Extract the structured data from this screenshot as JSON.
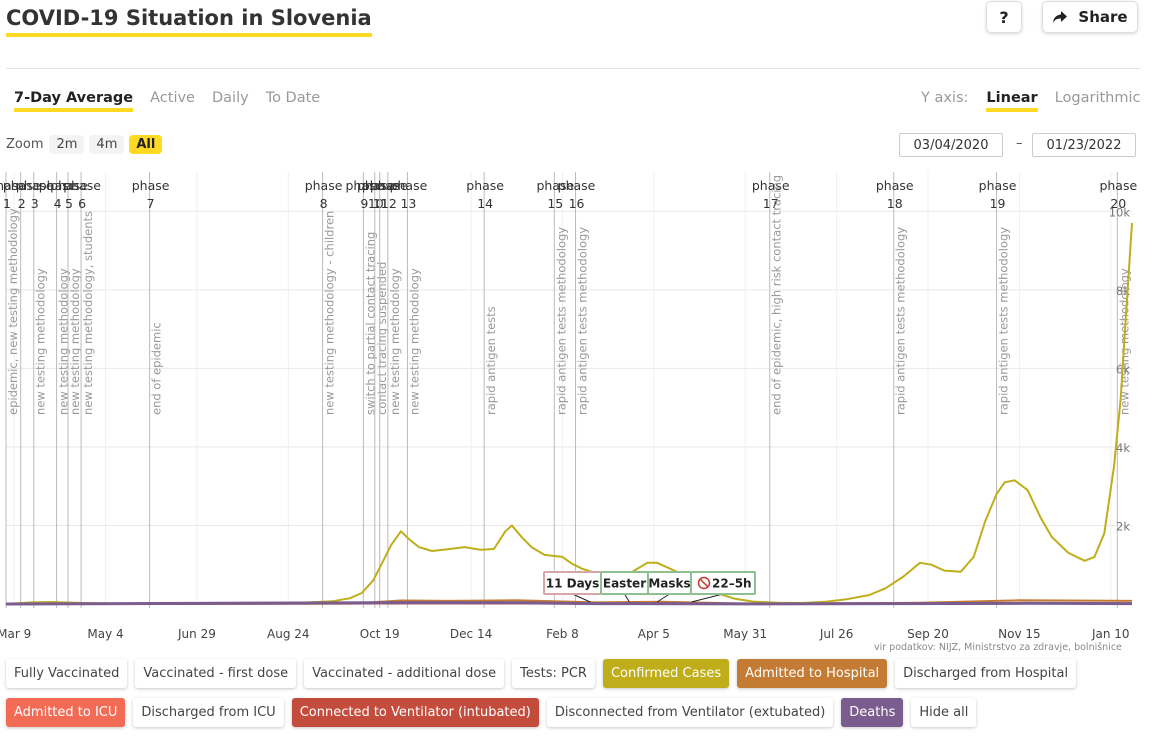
{
  "page": {
    "title": "COVID-19 Situation in Slovenia",
    "help_label": "?",
    "share_label": "Share",
    "share_icon": "share-arrow-icon",
    "tabs": [
      "7-Day Average",
      "Active",
      "Daily",
      "To Date"
    ],
    "active_tab": "7-Day Average",
    "yaxis_label": "Y axis:",
    "yaxis_options": [
      "Linear",
      "Logarithmic"
    ],
    "yaxis_active": "Linear",
    "zoom_label": "Zoom",
    "zoom_options": [
      "2m",
      "4m",
      "All"
    ],
    "zoom_active": "All",
    "date_from": "03/04/2020",
    "date_to": "01/23/2022",
    "date_sep": "–",
    "source": "vir podatkov: NIJZ, Ministrstvo za zdravje, bolnišnice"
  },
  "legend": [
    {
      "label": "Fully Vaccinated",
      "on": false,
      "color": ""
    },
    {
      "label": "Vaccinated - first dose",
      "on": false,
      "color": ""
    },
    {
      "label": "Vaccinated - additional dose",
      "on": false,
      "color": ""
    },
    {
      "label": "Tests: PCR",
      "on": false,
      "color": ""
    },
    {
      "label": "Confirmed Cases",
      "on": true,
      "color": "#bfae1a"
    },
    {
      "label": "Admitted to Hospital",
      "on": true,
      "color": "#c47b33"
    },
    {
      "label": "Discharged from Hospital",
      "on": false,
      "color": ""
    },
    {
      "label": "Admitted to ICU",
      "on": true,
      "color": "#f26b55"
    },
    {
      "label": "Discharged from ICU",
      "on": false,
      "color": ""
    },
    {
      "label": "Connected to Ventilator (intubated)",
      "on": true,
      "color": "#c34c3c"
    },
    {
      "label": "Disconnected from Ventilator (extubated)",
      "on": false,
      "color": ""
    },
    {
      "label": "Deaths",
      "on": true,
      "color": "#7a5c8e"
    },
    {
      "label": "Hide all",
      "on": false,
      "color": ""
    }
  ],
  "chart_data": {
    "type": "line",
    "x_start": "2020-03-04",
    "x_end": "2022-01-23",
    "ylim": [
      0,
      11000
    ],
    "y_ticks": [
      2000,
      4000,
      6000,
      8000,
      10000
    ],
    "y_tick_labels": [
      "2k",
      "4k",
      "6k",
      "8k",
      "10k"
    ],
    "x_ticks": [
      {
        "date": "2020-03-09",
        "label": "Mar 9"
      },
      {
        "date": "2020-05-04",
        "label": "May 4"
      },
      {
        "date": "2020-06-29",
        "label": "Jun 29"
      },
      {
        "date": "2020-08-24",
        "label": "Aug 24"
      },
      {
        "date": "2020-10-19",
        "label": "Oct 19"
      },
      {
        "date": "2020-12-14",
        "label": "Dec 14"
      },
      {
        "date": "2021-02-08",
        "label": "Feb 8"
      },
      {
        "date": "2021-04-05",
        "label": "Apr 5"
      },
      {
        "date": "2021-05-31",
        "label": "May 31"
      },
      {
        "date": "2021-07-26",
        "label": "Jul 26"
      },
      {
        "date": "2021-09-20",
        "label": "Sep 20"
      },
      {
        "date": "2021-11-15",
        "label": "Nov 15"
      },
      {
        "date": "2022-01-10",
        "label": "Jan 10"
      }
    ],
    "phases": [
      {
        "date": "2020-03-04",
        "num": "1",
        "title": "phase",
        "note": "epidemic, new testing methodology"
      },
      {
        "date": "2020-03-13",
        "num": "2",
        "title": "phase",
        "note": ""
      },
      {
        "date": "2020-03-21",
        "num": "3",
        "title": "phase",
        "note": "new testing methodology"
      },
      {
        "date": "2020-04-04",
        "num": "4",
        "title": "phase",
        "note": "new testing methodology"
      },
      {
        "date": "2020-04-11",
        "num": "5",
        "title": "phase",
        "note": "new testing methodology"
      },
      {
        "date": "2020-04-19",
        "num": "6",
        "title": "phase",
        "note": "new testing methodology, students"
      },
      {
        "date": "2020-05-31",
        "num": "7",
        "title": "phase",
        "note": "end of epidemic"
      },
      {
        "date": "2020-09-14",
        "num": "8",
        "title": "phase",
        "note": "new testing methodology - children"
      },
      {
        "date": "2020-10-09",
        "num": "9",
        "title": "phase",
        "note": "switch to partial contact tracing"
      },
      {
        "date": "2020-10-16",
        "num": "10",
        "title": "phase",
        "note": "contact tracing suspended"
      },
      {
        "date": "2020-10-19",
        "num": "11",
        "title": "phase",
        "note": ""
      },
      {
        "date": "2020-10-24",
        "num": "12",
        "title": "phase",
        "note": "new testing methodology"
      },
      {
        "date": "2020-11-05",
        "num": "13",
        "title": "phase",
        "note": "new testing methodology"
      },
      {
        "date": "2020-12-22",
        "num": "14",
        "title": "phase",
        "note": "rapid antigen tests"
      },
      {
        "date": "2021-02-03",
        "num": "15",
        "title": "phase",
        "note": "rapid antigen tests methodology"
      },
      {
        "date": "2021-02-16",
        "num": "16",
        "title": "phase",
        "note": "rapid antigen tests methodology"
      },
      {
        "date": "2021-06-15",
        "num": "17",
        "title": "phase",
        "note": "end of epidemic, high risk contact tracing"
      },
      {
        "date": "2021-08-30",
        "num": "18",
        "title": "phase",
        "note": "rapid antigen tests methodology"
      },
      {
        "date": "2021-11-01",
        "num": "19",
        "title": "phase",
        "note": "rapid antigen tests methodology"
      },
      {
        "date": "2022-01-14",
        "num": "20",
        "title": "phase",
        "note": "new testing methodology"
      }
    ],
    "annotations": [
      {
        "date": "2021-02-25",
        "label": "11 Days"
      },
      {
        "date": "2021-03-21",
        "label": "Easter"
      },
      {
        "date": "2021-04-07",
        "label": "Masks"
      },
      {
        "date": "2021-04-28",
        "label": "22–5h"
      }
    ],
    "series": [
      {
        "name": "Confirmed Cases",
        "color": "#bfae1a",
        "points": [
          [
            "2020-03-04",
            0
          ],
          [
            "2020-03-20",
            40
          ],
          [
            "2020-04-01",
            50
          ],
          [
            "2020-04-20",
            25
          ],
          [
            "2020-05-15",
            5
          ],
          [
            "2020-06-15",
            8
          ],
          [
            "2020-07-10",
            18
          ],
          [
            "2020-08-10",
            20
          ],
          [
            "2020-09-01",
            30
          ],
          [
            "2020-09-20",
            70
          ],
          [
            "2020-10-01",
            150
          ],
          [
            "2020-10-08",
            280
          ],
          [
            "2020-10-15",
            600
          ],
          [
            "2020-10-20",
            1000
          ],
          [
            "2020-10-26",
            1500
          ],
          [
            "2020-11-01",
            1850
          ],
          [
            "2020-11-06",
            1650
          ],
          [
            "2020-11-12",
            1450
          ],
          [
            "2020-11-20",
            1350
          ],
          [
            "2020-12-01",
            1400
          ],
          [
            "2020-12-10",
            1450
          ],
          [
            "2020-12-20",
            1380
          ],
          [
            "2020-12-28",
            1400
          ],
          [
            "2021-01-04",
            1850
          ],
          [
            "2021-01-08",
            2000
          ],
          [
            "2021-01-14",
            1700
          ],
          [
            "2021-01-20",
            1450
          ],
          [
            "2021-01-28",
            1250
          ],
          [
            "2021-02-08",
            1200
          ],
          [
            "2021-02-14",
            1020
          ],
          [
            "2021-02-20",
            900
          ],
          [
            "2021-03-01",
            780
          ],
          [
            "2021-03-10",
            780
          ],
          [
            "2021-03-22",
            800
          ],
          [
            "2021-04-01",
            1050
          ],
          [
            "2021-04-07",
            1050
          ],
          [
            "2021-04-15",
            900
          ],
          [
            "2021-04-25",
            700
          ],
          [
            "2021-05-05",
            450
          ],
          [
            "2021-05-15",
            260
          ],
          [
            "2021-05-25",
            130
          ],
          [
            "2021-06-05",
            60
          ],
          [
            "2021-06-20",
            30
          ],
          [
            "2021-07-05",
            25
          ],
          [
            "2021-07-20",
            60
          ],
          [
            "2021-08-01",
            120
          ],
          [
            "2021-08-15",
            230
          ],
          [
            "2021-08-25",
            400
          ],
          [
            "2021-09-05",
            700
          ],
          [
            "2021-09-15",
            1050
          ],
          [
            "2021-09-22",
            1000
          ],
          [
            "2021-09-30",
            850
          ],
          [
            "2021-10-10",
            820
          ],
          [
            "2021-10-18",
            1200
          ],
          [
            "2021-10-25",
            2100
          ],
          [
            "2021-11-01",
            2800
          ],
          [
            "2021-11-06",
            3100
          ],
          [
            "2021-11-12",
            3150
          ],
          [
            "2021-11-20",
            2900
          ],
          [
            "2021-11-28",
            2200
          ],
          [
            "2021-12-05",
            1700
          ],
          [
            "2021-12-15",
            1300
          ],
          [
            "2021-12-25",
            1100
          ],
          [
            "2021-12-31",
            1200
          ],
          [
            "2022-01-06",
            1800
          ],
          [
            "2022-01-12",
            3500
          ],
          [
            "2022-01-16",
            5200
          ],
          [
            "2022-01-20",
            7800
          ],
          [
            "2022-01-23",
            9700
          ]
        ]
      },
      {
        "name": "Admitted to Hospital",
        "color": "#c47b33",
        "points": [
          [
            "2020-03-04",
            0
          ],
          [
            "2020-10-01",
            10
          ],
          [
            "2020-11-01",
            90
          ],
          [
            "2020-12-01",
            80
          ],
          [
            "2021-01-10",
            95
          ],
          [
            "2021-03-01",
            40
          ],
          [
            "2021-04-10",
            55
          ],
          [
            "2021-06-01",
            10
          ],
          [
            "2021-09-15",
            30
          ],
          [
            "2021-11-15",
            95
          ],
          [
            "2022-01-23",
            80
          ]
        ]
      },
      {
        "name": "Admitted to ICU",
        "color": "#f26b55",
        "points": [
          [
            "2020-03-04",
            0
          ],
          [
            "2020-11-01",
            20
          ],
          [
            "2021-01-10",
            20
          ],
          [
            "2021-06-01",
            3
          ],
          [
            "2021-11-15",
            25
          ],
          [
            "2022-01-23",
            15
          ]
        ]
      },
      {
        "name": "Connected to Ventilator (intubated)",
        "color": "#c34c3c",
        "points": [
          [
            "2020-03-04",
            0
          ],
          [
            "2020-11-10",
            12
          ],
          [
            "2021-01-10",
            14
          ],
          [
            "2021-06-01",
            2
          ],
          [
            "2021-11-20",
            15
          ],
          [
            "2022-01-23",
            10
          ]
        ]
      },
      {
        "name": "Deaths",
        "color": "#7a5c8e",
        "points": [
          [
            "2020-03-04",
            0
          ],
          [
            "2020-11-15",
            35
          ],
          [
            "2021-01-10",
            30
          ],
          [
            "2021-03-01",
            10
          ],
          [
            "2021-06-01",
            2
          ],
          [
            "2021-11-20",
            18
          ],
          [
            "2022-01-23",
            10
          ]
        ]
      }
    ]
  }
}
